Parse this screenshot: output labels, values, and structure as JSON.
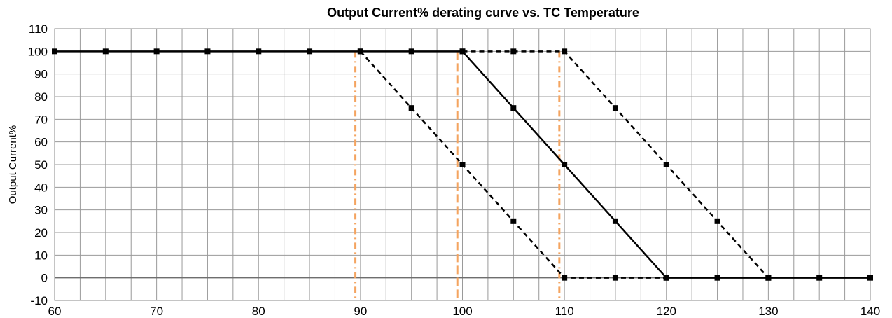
{
  "chart_data": {
    "type": "line",
    "title": "Output Current% derating curve vs. TC Temperature",
    "xlabel": "",
    "ylabel": "Output Current%",
    "xlim": [
      60,
      140
    ],
    "ylim": [
      -10,
      110
    ],
    "xticks": [
      60,
      70,
      80,
      90,
      100,
      110,
      120,
      130,
      140
    ],
    "yticks": [
      -10,
      0,
      10,
      20,
      30,
      40,
      50,
      60,
      70,
      80,
      90,
      100,
      110
    ],
    "x_minor_step": 2.5,
    "grid": true,
    "legend": "none",
    "series": [
      {
        "style": "dashed",
        "color": "#000000",
        "marker": "square",
        "x": [
          90,
          95,
          100,
          105,
          110,
          115,
          120
        ],
        "y": [
          100,
          75,
          50,
          25,
          0,
          0,
          0
        ]
      },
      {
        "style": "solid",
        "color": "#000000",
        "marker": "square",
        "x": [
          60,
          65,
          70,
          75,
          80,
          85,
          90,
          95,
          100,
          105,
          110,
          115,
          120,
          125,
          130,
          135,
          140
        ],
        "y": [
          100,
          100,
          100,
          100,
          100,
          100,
          100,
          100,
          100,
          75,
          50,
          25,
          0,
          0,
          0,
          0,
          0
        ]
      },
      {
        "style": "dashed",
        "color": "#000000",
        "marker": "square",
        "x": [
          100,
          105,
          110,
          115,
          120,
          125,
          130
        ],
        "y": [
          100,
          100,
          100,
          75,
          50,
          25,
          0
        ]
      }
    ],
    "reference_lines": [
      {
        "x": 89.5,
        "style": "dash-dot",
        "color": "#f4a460"
      },
      {
        "x": 99.5,
        "style": "dashed",
        "color": "#f4a460"
      },
      {
        "x": 109.5,
        "style": "dash-dot",
        "color": "#f4a460"
      }
    ]
  }
}
